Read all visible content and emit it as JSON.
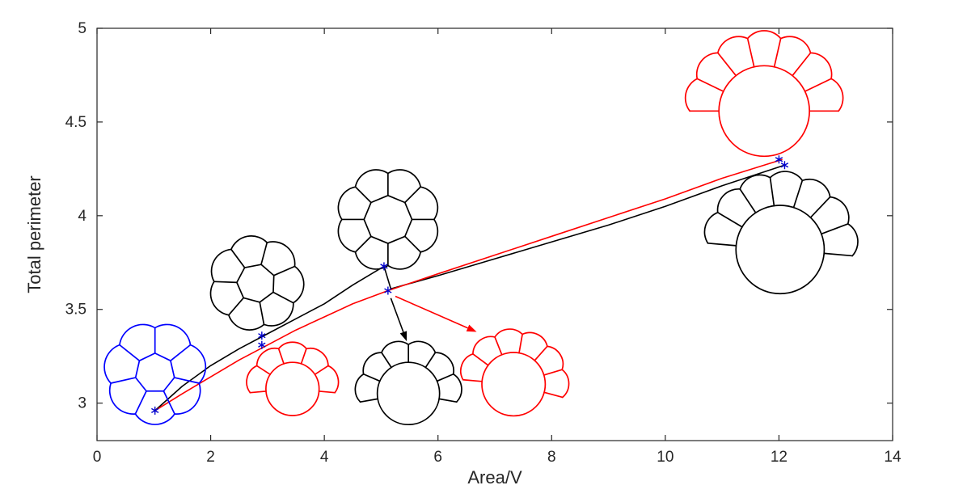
{
  "figure": {
    "background": "#ffffff"
  },
  "chart_data": {
    "type": "line",
    "title": "",
    "xlabel": "Area/V",
    "ylabel": "Total perimeter",
    "xlim": [
      0,
      14
    ],
    "ylim": [
      2.8,
      5.0
    ],
    "xticks": [
      0,
      2,
      4,
      6,
      8,
      10,
      12,
      14
    ],
    "xtick_labels": [
      "0",
      "2",
      "4",
      "6",
      "8",
      "10",
      "12",
      "14"
    ],
    "yticks": [
      3,
      3.5,
      4,
      4.5,
      5
    ],
    "ytick_labels": [
      "3",
      "3.5",
      "4",
      "4.5",
      "5"
    ],
    "box": true,
    "grid": false,
    "axis_color": "#262626",
    "series": [
      {
        "name": "black-branch",
        "color": "#000000",
        "x": [
          1.02,
          1.5,
          2,
          2.5,
          3,
          3.5,
          4,
          4.5,
          5.05,
          5.17,
          6,
          7,
          8,
          9,
          10,
          11,
          12.1
        ],
        "y": [
          2.96,
          3.09,
          3.2,
          3.29,
          3.37,
          3.45,
          3.53,
          3.63,
          3.73,
          3.61,
          3.68,
          3.77,
          3.86,
          3.95,
          4.05,
          4.16,
          4.27
        ]
      },
      {
        "name": "red-branch",
        "color": "#ff0000",
        "x": [
          1.02,
          1.5,
          2,
          2.5,
          3,
          3.5,
          4,
          4.5,
          5.12,
          6,
          7,
          8,
          9,
          10,
          11,
          12.06
        ],
        "y": [
          2.96,
          3.05,
          3.14,
          3.23,
          3.31,
          3.39,
          3.46,
          3.53,
          3.6,
          3.69,
          3.79,
          3.89,
          3.99,
          4.09,
          4.2,
          4.3
        ]
      }
    ],
    "markers": {
      "symbol": "*",
      "color": "#0000cd",
      "size": 5,
      "points": [
        [
          1.02,
          2.96
        ],
        [
          2.9,
          3.31
        ],
        [
          2.9,
          3.36
        ],
        [
          5.05,
          3.73
        ],
        [
          5.12,
          3.6
        ],
        [
          12.0,
          4.3
        ],
        [
          12.1,
          4.27
        ]
      ]
    },
    "annotations": {
      "arrows": [
        {
          "name": "black-arrow",
          "color": "#000000",
          "from": [
            5.17,
            3.56
          ],
          "to": [
            5.45,
            3.33
          ]
        },
        {
          "name": "red-arrow",
          "color": "#ff0000",
          "from": [
            5.25,
            3.57
          ],
          "to": [
            6.68,
            3.38
          ]
        }
      ]
    },
    "cluster_insets": [
      {
        "name": "blue-flower-cluster",
        "style": "rosette",
        "color": "#0000ff",
        "cx": 1.02,
        "cy": 3.16,
        "r": 56,
        "n": 7,
        "inner": 0.44,
        "rot": -90
      },
      {
        "name": "black-flower-cluster",
        "style": "rosette",
        "color": "#000000",
        "cx": 2.8,
        "cy": 3.64,
        "r": 52,
        "n": 7,
        "inner": 0.46,
        "rot": -75
      },
      {
        "name": "black-ring-cluster",
        "style": "rosette",
        "color": "#000000",
        "cx": 5.12,
        "cy": 3.98,
        "r": 57,
        "n": 8,
        "inner": 0.52,
        "rot": -90
      },
      {
        "name": "red-small-cap-cluster",
        "style": "polarized",
        "color": "#ff0000",
        "cx": 3.44,
        "cy": 3.1,
        "r": 47,
        "n": 5,
        "cap_start": -185,
        "cap_end": 5,
        "big": 0.7,
        "cap_h": 0.42
      },
      {
        "name": "black-cap-cluster",
        "style": "polarized",
        "color": "#000000",
        "cx": 5.48,
        "cy": 3.08,
        "r": 55,
        "n": 6,
        "cap_start": -190,
        "cap_end": 10,
        "big": 0.7,
        "cap_h": 0.4
      },
      {
        "name": "red-cap-cluster",
        "style": "polarized",
        "color": "#ff0000",
        "cx": 7.33,
        "cy": 3.13,
        "r": 56,
        "n": 6,
        "cap_start": -175,
        "cap_end": 15,
        "big": 0.7,
        "cap_h": 0.42
      },
      {
        "name": "red-large-cluster",
        "style": "polarized",
        "color": "#ff0000",
        "cx": 11.74,
        "cy": 4.6,
        "r": 80,
        "n": 7,
        "cap_start": -180,
        "cap_end": 0,
        "big": 0.7,
        "cap_h": 0.45
      },
      {
        "name": "black-large-cluster",
        "style": "polarized",
        "color": "#000000",
        "cx": 12.02,
        "cy": 3.86,
        "r": 78,
        "n": 7,
        "cap_start": -175,
        "cap_end": 5,
        "big": 0.7,
        "cap_h": 0.45
      }
    ]
  }
}
